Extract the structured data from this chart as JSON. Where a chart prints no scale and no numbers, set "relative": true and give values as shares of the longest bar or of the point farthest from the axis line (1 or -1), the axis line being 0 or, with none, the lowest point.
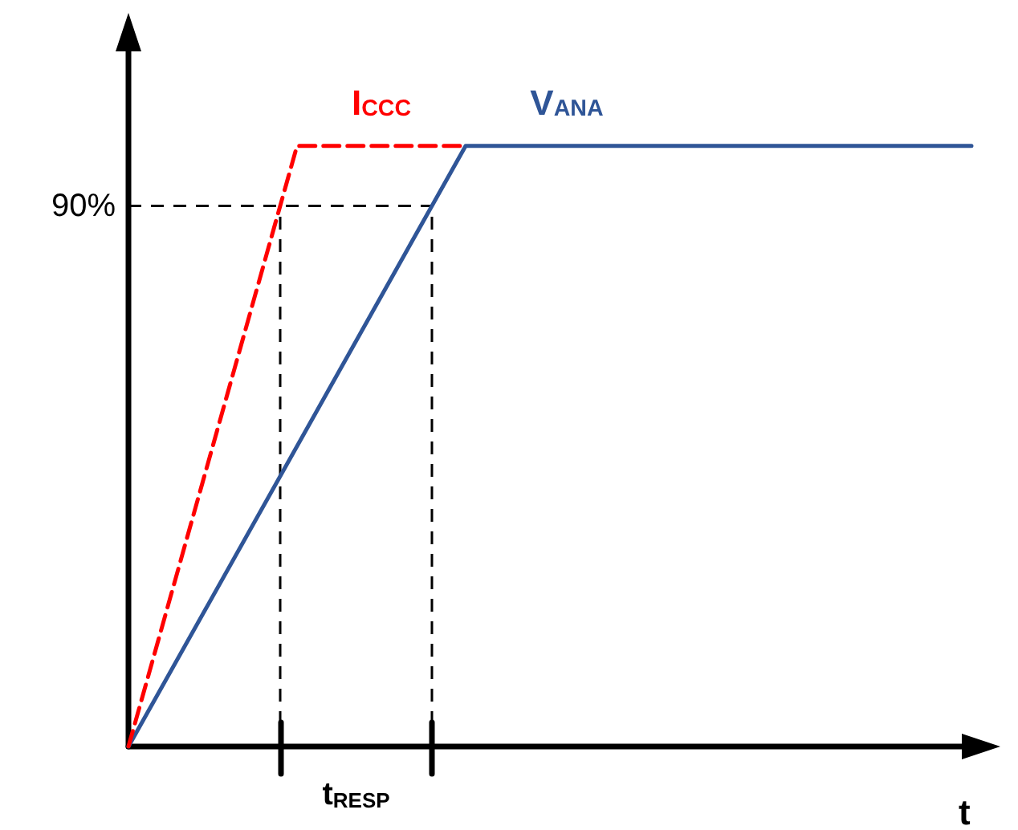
{
  "chart_data": {
    "type": "line",
    "relative": true,
    "xlabel": "t",
    "marker": "none",
    "categories": [
      null,
      null,
      null,
      null,
      null,
      null,
      null,
      null,
      null,
      null,
      null,
      null,
      null,
      null,
      null,
      null,
      null,
      null,
      null,
      null,
      null,
      null,
      null,
      null,
      null,
      null,
      null,
      null,
      null,
      null,
      null,
      null,
      null,
      null,
      null,
      null,
      null,
      null,
      null,
      null,
      null,
      null,
      null,
      null,
      null,
      null,
      null,
      null,
      null,
      null,
      null
    ],
    "series": [
      {
        "name": "I$_{CCC}$",
        "color": "#ff0000",
        "line_style": "dashed",
        "values": [
          0,
          null,
          null,
          null,
          null,
          null,
          null,
          null,
          null,
          null,
          1,
          null,
          null,
          null,
          null,
          null,
          null,
          null,
          null,
          null,
          1,
          null,
          null,
          null,
          null,
          null,
          null,
          null,
          null,
          null,
          null,
          null,
          null,
          null,
          null,
          null,
          null,
          null,
          null,
          null,
          null,
          null,
          null,
          null,
          null,
          null,
          null,
          null,
          null,
          null,
          null
        ]
      },
      {
        "name": "V$_{ANA}$",
        "color": "#2f5597",
        "line_style": "solid",
        "values": [
          0,
          null,
          null,
          null,
          null,
          null,
          null,
          null,
          null,
          null,
          null,
          null,
          null,
          null,
          null,
          null,
          null,
          null,
          null,
          null,
          1,
          null,
          null,
          null,
          null,
          null,
          null,
          null,
          null,
          null,
          null,
          null,
          null,
          null,
          null,
          null,
          null,
          null,
          null,
          null,
          null,
          null,
          null,
          null,
          null,
          null,
          null,
          null,
          null,
          null,
          1
        ]
      }
    ],
    "ref_lines": [
      {
        "axis": "y",
        "value": 0.9,
        "label": "90%",
        "color": "#000000",
        "line_style": "dashed"
      }
    ],
    "annotations": [
      "t$_{RESP}$"
    ]
  }
}
